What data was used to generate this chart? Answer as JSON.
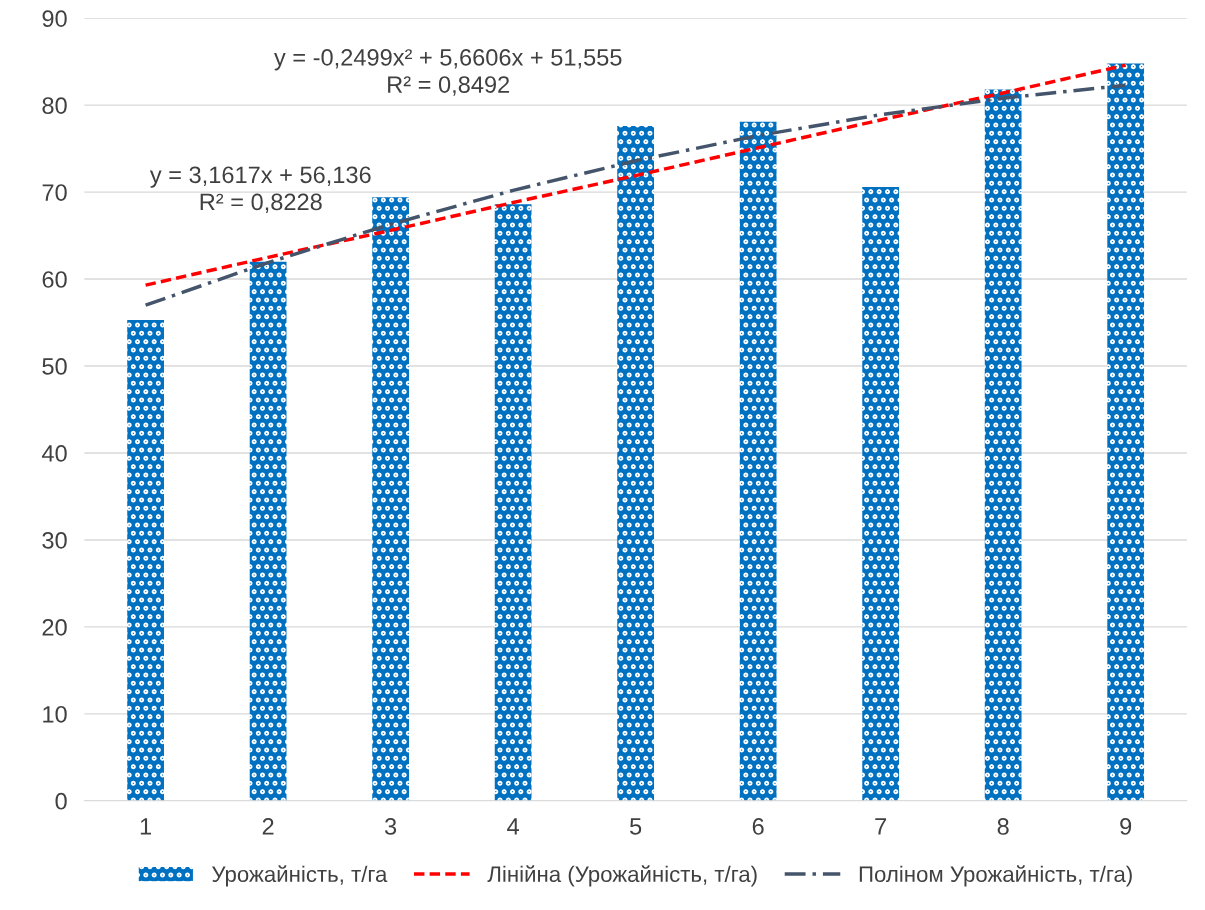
{
  "chart_data": {
    "type": "bar",
    "categories": [
      "1",
      "2",
      "3",
      "4",
      "5",
      "6",
      "7",
      "8",
      "9"
    ],
    "ylim": [
      0,
      90
    ],
    "yticks": [
      0,
      10,
      20,
      30,
      40,
      50,
      60,
      70,
      80,
      90
    ],
    "grid": "y",
    "legend": "bottom",
    "series": [
      {
        "name": "Урожайність, т/га",
        "color": "#0070c0",
        "values": [
          55.3,
          62.0,
          69.4,
          68.6,
          77.6,
          78.1,
          70.6,
          81.8,
          84.8
        ]
      },
      {
        "name": "Лінійна (Урожайність, т/га)",
        "type": "line",
        "color": "#ff0000",
        "line_style": "dashed",
        "values": [
          59.3,
          62.5,
          65.6,
          68.8,
          71.9,
          75.1,
          78.3,
          81.4,
          84.6
        ]
      },
      {
        "name": "Поліном Урожайність, т/га)",
        "type": "line",
        "color": "#44546a",
        "line_style": "dashdot",
        "values": [
          57.0,
          61.9,
          66.3,
          70.2,
          73.6,
          76.5,
          78.9,
          80.8,
          82.3
        ]
      }
    ],
    "annotations": [
      "y = 3,1617x + 56,136\nR² = 0,8228",
      "y = -0,2499x² + 5,6606x + 51,555\nR² = 0,8492"
    ]
  }
}
